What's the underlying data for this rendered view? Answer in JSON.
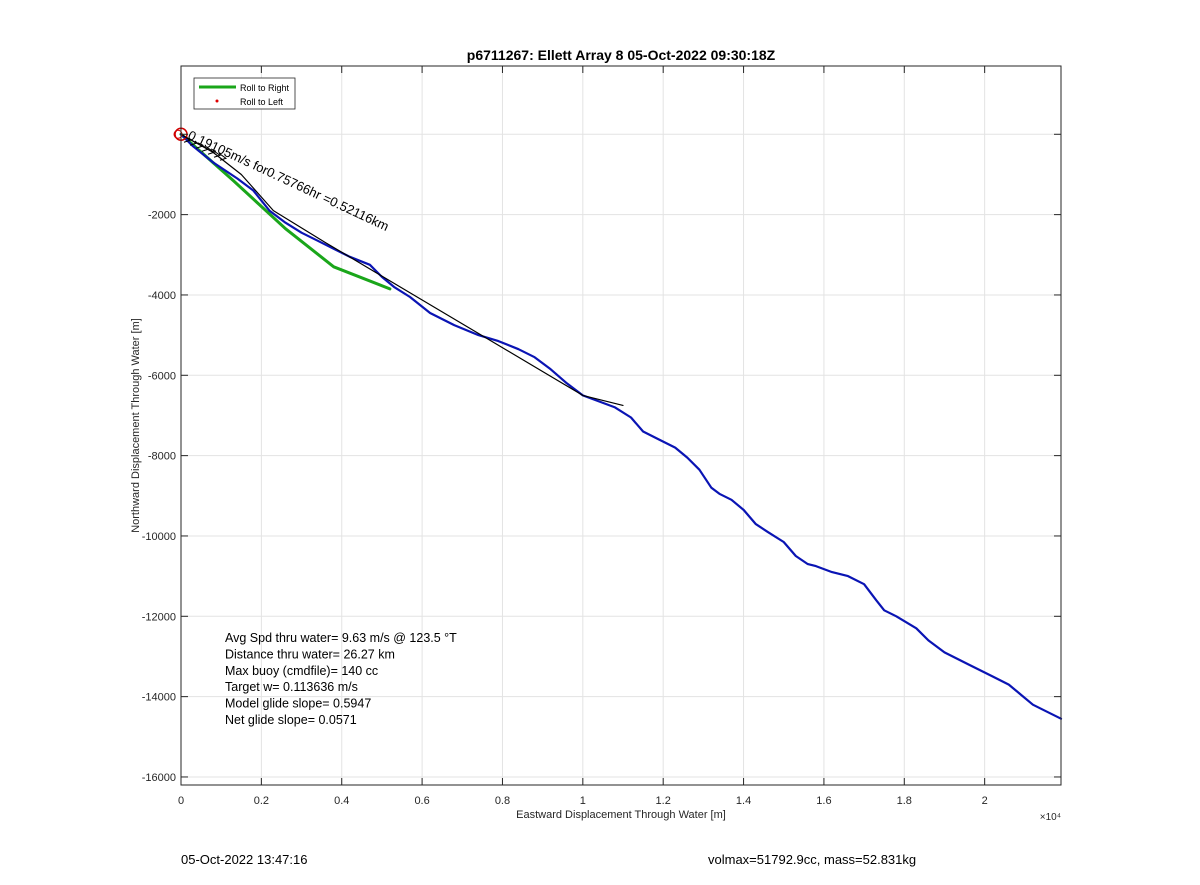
{
  "chart_data": {
    "type": "line",
    "title": "p6711267: Ellett Array 8 05-Oct-2022 09:30:18Z",
    "xlabel": "Eastward Displacement Through Water [m]",
    "ylabel": "Northward Displacement Through Water [m]",
    "x_exponent_label": "×10⁴",
    "xlim": [
      0,
      21900
    ],
    "ylim": [
      -16200,
      1700
    ],
    "x_ticks": [
      0,
      2000,
      4000,
      6000,
      8000,
      10000,
      12000,
      14000,
      16000,
      18000,
      20000
    ],
    "x_tick_labels": [
      "0",
      "0.2",
      "0.4",
      "0.6",
      "0.8",
      "1",
      "1.2",
      "1.4",
      "1.6",
      "1.8",
      "2"
    ],
    "y_ticks": [
      -16000,
      -14000,
      -12000,
      -10000,
      -8000,
      -6000,
      -4000,
      -2000,
      0
    ],
    "y_tick_labels": [
      "-16000",
      "-14000",
      "-12000",
      "-10000",
      "-8000",
      "-6000",
      "-4000",
      "-2000",
      ""
    ],
    "grid": true,
    "legend_position": "top-left",
    "series": [
      {
        "name": "Roll to Right",
        "color": "#1aa61a",
        "x": [
          0,
          1300,
          2600,
          3800,
          5200
        ],
        "y": [
          0,
          -1150,
          -2350,
          -3300,
          -3850
        ]
      },
      {
        "name": "Roll to Left",
        "color": "#e00000",
        "x": [],
        "y": []
      },
      {
        "name": "",
        "color": "#0a14b4",
        "x": [
          0,
          300,
          800,
          1400,
          1800,
          2200,
          2600,
          3000,
          3400,
          3800,
          4200,
          4700,
          5000,
          5300,
          5700,
          6200,
          6800,
          7400,
          7900,
          8400,
          8800,
          9200,
          9600,
          10000,
          10400,
          10800,
          11200,
          11500,
          11900,
          12300,
          12600,
          12900,
          13200,
          13400,
          13700,
          14000,
          14300,
          14600,
          15000,
          15300,
          15600,
          15800,
          16200,
          16600,
          17000,
          17300,
          17500,
          17800,
          18300,
          18600,
          19000,
          19600,
          20200,
          20600,
          20900,
          21200,
          21500,
          21900
        ],
        "y": [
          0,
          -300,
          -700,
          -1100,
          -1400,
          -1900,
          -2200,
          -2450,
          -2650,
          -2850,
          -3050,
          -3250,
          -3550,
          -3800,
          -4050,
          -4450,
          -4750,
          -5000,
          -5150,
          -5350,
          -5550,
          -5850,
          -6200,
          -6500,
          -6650,
          -6800,
          -7050,
          -7400,
          -7600,
          -7800,
          -8050,
          -8350,
          -8800,
          -8950,
          -9100,
          -9350,
          -9700,
          -9900,
          -10150,
          -10500,
          -10700,
          -10750,
          -10900,
          -11000,
          -11200,
          -11600,
          -11850,
          -12000,
          -12300,
          -12600,
          -12900,
          -13200,
          -13500,
          -13700,
          -13950,
          -14200,
          -14350,
          -14550
        ]
      },
      {
        "name": "",
        "color": "#000000",
        "x": [
          0,
          800,
          1500,
          2300,
          3600,
          10000,
          11000
        ],
        "y": [
          0,
          -450,
          -1000,
          -1900,
          -2700,
          -6500,
          -6750
        ]
      }
    ],
    "annotations": {
      "diagonal_label": "0.19105m/s for0.75766hr =0.52116km",
      "start_marker_color": "#d00000",
      "stats": [
        "Avg Spd thru water=  9.63 m/s @ 123.5 °T",
        "Distance thru water= 26.27 km",
        "Max buoy (cmdfile)= 140 cc",
        "Target w= 0.113636 m/s",
        "Model glide slope= 0.5947",
        "Net glide slope= 0.0571"
      ]
    }
  },
  "footer": {
    "left": "05-Oct-2022 13:47:16",
    "right": "volmax=51792.9cc, mass=52.831kg"
  }
}
